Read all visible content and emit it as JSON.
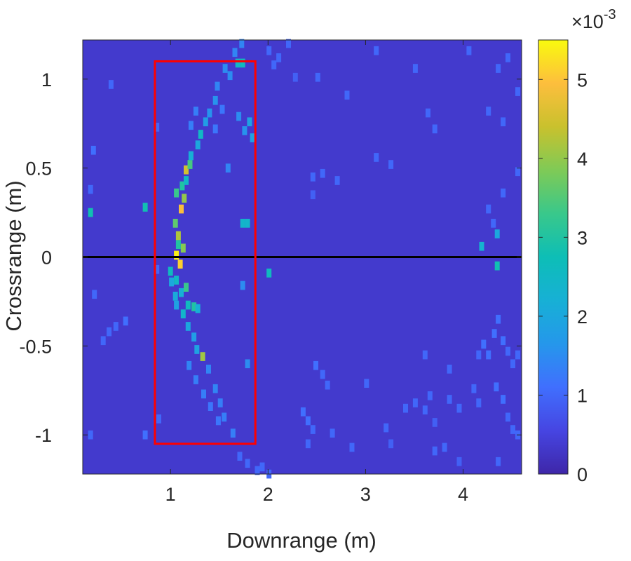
{
  "chart_data": {
    "type": "heatmap",
    "xlabel": "Downrange (m)",
    "ylabel": "Crossrange (m)",
    "xlim": [
      0.1,
      4.6
    ],
    "ylim": [
      -1.22,
      1.22
    ],
    "x_ticks": [
      1,
      2,
      3,
      4
    ],
    "x_tick_labels": [
      "1",
      "2",
      "3",
      "4"
    ],
    "y_ticks": [
      -1,
      -0.5,
      0,
      0.5,
      1
    ],
    "y_tick_labels": [
      "-1",
      "-0.5",
      "0",
      "0.5",
      "1"
    ],
    "colorbar": {
      "colormap": "parula",
      "clim": [
        0,
        5.5
      ],
      "ticks": [
        0,
        1,
        2,
        3,
        4,
        5
      ],
      "tick_labels": [
        "0",
        "1",
        "2",
        "3",
        "4",
        "5"
      ],
      "multiplier_base": "×10",
      "multiplier_exponent": "-3"
    },
    "background_value": 0.35,
    "cell_size": [
      0.05,
      0.05
    ],
    "annotations": {
      "red_rectangle": {
        "x": [
          0.84,
          1.87
        ],
        "y": [
          -1.05,
          1.1
        ],
        "color": "#ff0000"
      },
      "black_line": {
        "y": 0,
        "x": [
          0.1,
          4.6
        ],
        "color": "#000000"
      }
    },
    "cells": [
      [
        1.06,
        0.01,
        5.4
      ],
      [
        1.1,
        -0.04,
        5.1
      ],
      [
        1.11,
        0.27,
        4.9
      ],
      [
        1.16,
        0.49,
        4.5
      ],
      [
        1.08,
        0.12,
        4.2
      ],
      [
        1.14,
        0.33,
        4.0
      ],
      [
        1.13,
        0.05,
        3.9
      ],
      [
        1.33,
        -0.56,
        4.1
      ],
      [
        1.05,
        0.19,
        3.6
      ],
      [
        1.2,
        0.52,
        3.4
      ],
      [
        1.06,
        0.36,
        3.3
      ],
      [
        1.16,
        -0.17,
        3.3
      ],
      [
        1.24,
        -0.28,
        3.0
      ],
      [
        1.12,
        0.4,
        3.0
      ],
      [
        1.08,
        0.07,
        3.0
      ],
      [
        0.18,
        0.25,
        2.8
      ],
      [
        0.74,
        0.28,
        2.8
      ],
      [
        1.18,
        -0.27,
        2.6
      ],
      [
        1.0,
        -0.08,
        2.6
      ],
      [
        1.06,
        -0.13,
        2.5
      ],
      [
        1.13,
        -0.32,
        2.4
      ],
      [
        1.16,
        0.43,
        2.5
      ],
      [
        1.21,
        0.57,
        2.2
      ],
      [
        1.31,
        0.69,
        2.5
      ],
      [
        1.69,
        1.09,
        2.5
      ],
      [
        1.74,
        1.09,
        2.6
      ],
      [
        1.79,
        0.19,
        2.4
      ],
      [
        1.74,
        0.19,
        2.4
      ],
      [
        2.01,
        -0.09,
        2.6
      ],
      [
        4.35,
        -0.05,
        2.8
      ],
      [
        4.19,
        0.06,
        2.3
      ],
      [
        4.35,
        0.13,
        2.0
      ],
      [
        1.11,
        -0.2,
        2.2
      ],
      [
        1.05,
        -0.22,
        2.1
      ],
      [
        1.28,
        -0.29,
        2.2
      ],
      [
        1.18,
        -0.39,
        2.0
      ],
      [
        1.24,
        -0.45,
        1.8
      ],
      [
        1.27,
        -0.52,
        1.9
      ],
      [
        1.06,
        -0.27,
        1.9
      ],
      [
        1.01,
        -0.14,
        2.0
      ],
      [
        1.28,
        0.63,
        2.0
      ],
      [
        1.36,
        0.76,
        1.8
      ],
      [
        1.4,
        0.81,
        1.6
      ],
      [
        1.46,
        0.88,
        1.6
      ],
      [
        1.48,
        0.96,
        1.4
      ],
      [
        1.61,
        1.02,
        1.5
      ],
      [
        1.56,
        1.06,
        1.5
      ],
      [
        1.66,
        1.15,
        1.4
      ],
      [
        1.73,
        1.2,
        1.4
      ],
      [
        1.81,
        0.76,
        1.9
      ],
      [
        1.76,
        0.71,
        1.6
      ],
      [
        1.84,
        0.67,
        1.9
      ],
      [
        1.7,
        0.79,
        1.5
      ],
      [
        1.59,
        0.5,
        1.4
      ],
      [
        1.79,
        -0.6,
        1.5
      ],
      [
        1.74,
        -0.16,
        1.5
      ],
      [
        1.39,
        -0.63,
        1.4
      ],
      [
        1.46,
        -0.74,
        1.4
      ],
      [
        1.51,
        -0.82,
        1.3
      ],
      [
        1.55,
        -0.9,
        1.3
      ],
      [
        1.64,
        -0.99,
        1.3
      ],
      [
        1.19,
        -0.61,
        1.4
      ],
      [
        1.26,
        -0.69,
        1.3
      ],
      [
        1.34,
        -0.77,
        1.3
      ],
      [
        1.41,
        -0.84,
        1.2
      ],
      [
        1.49,
        -0.92,
        1.2
      ],
      [
        1.21,
        0.74,
        1.3
      ],
      [
        1.26,
        0.82,
        1.3
      ],
      [
        1.46,
        0.72,
        1.2
      ],
      [
        1.53,
        0.83,
        1.2
      ],
      [
        0.54,
        -0.36,
        1.1
      ],
      [
        0.44,
        -0.39,
        1.0
      ],
      [
        0.37,
        -0.42,
        1.0
      ],
      [
        0.31,
        -0.47,
        1.0
      ],
      [
        0.22,
        -0.21,
        1.0
      ],
      [
        0.21,
        0.6,
        1.1
      ],
      [
        0.18,
        0.38,
        1.0
      ],
      [
        0.39,
        0.97,
        1.0
      ],
      [
        0.86,
        0.73,
        1.0
      ],
      [
        0.88,
        -0.91,
        1.0
      ],
      [
        0.18,
        -1.0,
        1.0
      ],
      [
        0.74,
        -1.0,
        1.1
      ],
      [
        0.86,
        -0.07,
        1.0
      ],
      [
        2.41,
        -0.92,
        1.1
      ],
      [
        2.46,
        -0.97,
        1.0
      ],
      [
        2.36,
        -0.87,
        1.1
      ],
      [
        2.41,
        -1.05,
        1.0
      ],
      [
        2.49,
        -0.61,
        1.1
      ],
      [
        2.56,
        -0.66,
        1.0
      ],
      [
        2.61,
        -0.72,
        1.0
      ],
      [
        2.46,
        0.45,
        1.0
      ],
      [
        2.56,
        0.47,
        1.0
      ],
      [
        2.71,
        0.43,
        1.0
      ],
      [
        2.46,
        0.35,
        0.9
      ],
      [
        2.81,
        0.91,
        1.0
      ],
      [
        2.51,
        1.01,
        1.0
      ],
      [
        2.06,
        1.08,
        1.0
      ],
      [
        2.11,
        1.12,
        1.0
      ],
      [
        2.21,
        1.2,
        1.0
      ],
      [
        2.01,
        1.16,
        1.0
      ],
      [
        2.28,
        1.01,
        0.9
      ],
      [
        3.11,
        0.56,
        1.0
      ],
      [
        3.26,
        0.52,
        1.0
      ],
      [
        3.11,
        1.16,
        1.0
      ],
      [
        3.51,
        1.06,
        1.0
      ],
      [
        3.64,
        0.81,
        1.0
      ],
      [
        3.71,
        0.72,
        1.0
      ],
      [
        3.61,
        -0.55,
        1.0
      ],
      [
        3.66,
        -0.78,
        1.0
      ],
      [
        3.41,
        -0.85,
        1.0
      ],
      [
        3.51,
        -0.82,
        1.0
      ],
      [
        3.61,
        -0.86,
        1.0
      ],
      [
        3.21,
        -0.96,
        1.0
      ],
      [
        3.26,
        -1.05,
        0.9
      ],
      [
        3.81,
        -1.07,
        1.0
      ],
      [
        3.86,
        -0.8,
        1.0
      ],
      [
        3.96,
        -0.85,
        1.0
      ],
      [
        3.71,
        -0.93,
        0.9
      ],
      [
        3.71,
        -1.09,
        1.0
      ],
      [
        3.96,
        -1.15,
        0.9
      ],
      [
        4.21,
        -0.49,
        1.1
      ],
      [
        4.26,
        -0.55,
        1.1
      ],
      [
        4.32,
        -0.43,
        1.1
      ],
      [
        4.36,
        -0.35,
        1.1
      ],
      [
        4.41,
        -0.47,
        1.1
      ],
      [
        4.46,
        -0.53,
        1.0
      ],
      [
        4.51,
        -0.6,
        1.0
      ],
      [
        4.56,
        -0.55,
        1.0
      ],
      [
        4.34,
        -0.73,
        1.1
      ],
      [
        4.41,
        -0.8,
        1.1
      ],
      [
        4.46,
        -0.9,
        1.0
      ],
      [
        4.51,
        -0.97,
        1.0
      ],
      [
        4.36,
        -1.15,
        1.0
      ],
      [
        4.56,
        -1.0,
        1.0
      ],
      [
        4.41,
        0.36,
        1.0
      ],
      [
        4.56,
        0.48,
        1.0
      ],
      [
        4.41,
        0.76,
        1.0
      ],
      [
        4.26,
        0.82,
        1.0
      ],
      [
        4.36,
        1.06,
        1.0
      ],
      [
        4.46,
        1.12,
        1.0
      ],
      [
        4.06,
        1.16,
        1.0
      ],
      [
        4.56,
        0.93,
        1.0
      ],
      [
        4.26,
        0.27,
        1.0
      ],
      [
        4.31,
        0.19,
        1.0
      ],
      [
        4.16,
        -0.55,
        1.0
      ],
      [
        4.11,
        -0.74,
        1.0
      ],
      [
        4.16,
        -0.82,
        1.0
      ],
      [
        3.86,
        -0.63,
        1.0
      ],
      [
        3.01,
        -0.71,
        1.0
      ],
      [
        2.86,
        -1.07,
        1.0
      ],
      [
        2.66,
        -0.99,
        1.0
      ],
      [
        1.89,
        -1.2,
        1.0
      ],
      [
        1.94,
        -1.18,
        1.0
      ],
      [
        1.79,
        -1.16,
        1.0
      ],
      [
        1.71,
        -1.12,
        1.0
      ],
      [
        2.01,
        -1.22,
        1.0
      ]
    ]
  }
}
